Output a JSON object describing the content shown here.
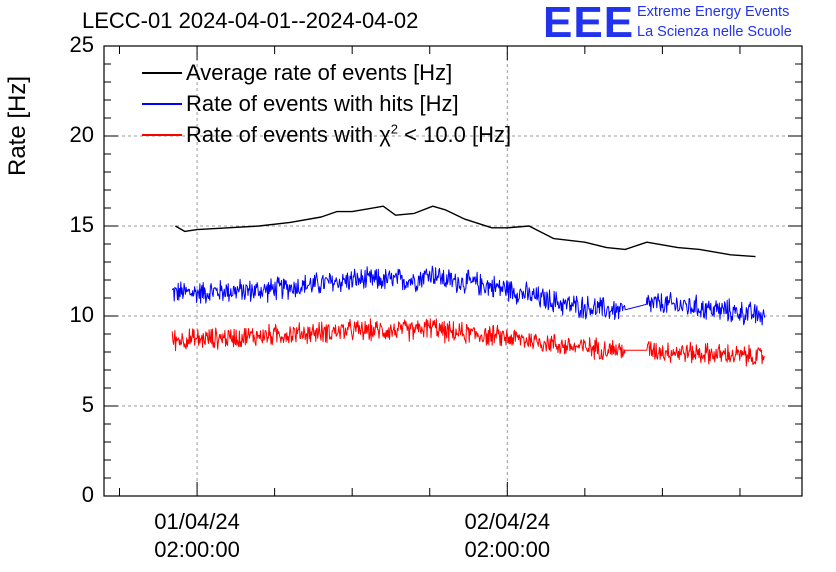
{
  "header": {
    "title": "LECC-01 2024-04-01--2024-04-02",
    "brand_logo": "EEE",
    "brand_line1": "Extreme Energy Events",
    "brand_line2": "La Scienza nelle Scuole"
  },
  "chart_data": {
    "type": "line",
    "title": "LECC-01 2024-04-01--2024-04-02",
    "ylabel": "Rate [Hz]",
    "xlabel": "",
    "ylim": [
      0,
      25
    ],
    "yticks": [
      "0",
      "5",
      "10",
      "15",
      "20",
      "25"
    ],
    "xlim": [
      -0.3,
      1.95
    ],
    "xticks": [
      {
        "x": 0,
        "date": "01/04/24",
        "time": "02:00:00"
      },
      {
        "x": 1,
        "date": "02/04/24",
        "time": "02:00:00"
      }
    ],
    "grid": true,
    "legend_placement": "top-left",
    "series": [
      {
        "name": "Average rate of events [Hz]",
        "color": "#000000",
        "style": "smooth",
        "x": [
          -0.07,
          -0.04,
          0.0,
          0.1,
          0.2,
          0.3,
          0.4,
          0.45,
          0.5,
          0.6,
          0.64,
          0.7,
          0.76,
          0.8,
          0.86,
          0.95,
          1.0,
          1.07,
          1.15,
          1.25,
          1.32,
          1.38,
          1.45,
          1.55,
          1.62,
          1.72,
          1.8
        ],
        "y": [
          15.0,
          14.7,
          14.8,
          14.9,
          15.0,
          15.2,
          15.5,
          15.8,
          15.8,
          16.1,
          15.6,
          15.7,
          16.1,
          15.9,
          15.4,
          14.9,
          14.9,
          15.0,
          14.3,
          14.1,
          13.8,
          13.7,
          14.1,
          13.8,
          13.7,
          13.4,
          13.3
        ]
      },
      {
        "name": "Rate of events with hits [Hz]",
        "color": "#0000ff",
        "style": "noisy",
        "noise_amplitude": 0.55,
        "x": [
          -0.08,
          0.0,
          0.1,
          0.2,
          0.3,
          0.4,
          0.5,
          0.6,
          0.7,
          0.76,
          0.8,
          0.9,
          1.0,
          1.1,
          1.2,
          1.3,
          1.37,
          1.46,
          1.55,
          1.65,
          1.75,
          1.83
        ],
        "y": [
          11.3,
          11.3,
          11.4,
          11.4,
          11.6,
          11.8,
          12.0,
          12.0,
          12.0,
          12.4,
          12.0,
          11.8,
          11.5,
          11.0,
          10.6,
          10.4,
          10.3,
          10.7,
          10.6,
          10.4,
          10.2,
          10.0
        ],
        "gap": [
          1.38,
          1.45
        ]
      },
      {
        "name": "Rate of events with χ² < 10.0 [Hz]",
        "color": "#ff0000",
        "style": "noisy",
        "noise_amplitude": 0.5,
        "x": [
          -0.08,
          0.0,
          0.1,
          0.2,
          0.3,
          0.4,
          0.5,
          0.6,
          0.7,
          0.76,
          0.8,
          0.9,
          1.0,
          1.1,
          1.2,
          1.3,
          1.37,
          1.46,
          1.55,
          1.65,
          1.75,
          1.83
        ],
        "y": [
          8.7,
          8.7,
          8.8,
          8.9,
          9.0,
          9.1,
          9.2,
          9.2,
          9.2,
          9.4,
          9.1,
          9.0,
          8.8,
          8.6,
          8.3,
          8.2,
          8.1,
          8.1,
          8.0,
          7.9,
          7.8,
          7.7
        ],
        "gap": [
          1.38,
          1.45
        ]
      }
    ]
  },
  "legend": {
    "entries": [
      {
        "text": "Average rate of events [Hz]"
      },
      {
        "text": "Rate of events with hits [Hz]"
      },
      {
        "text_prefix": "Rate of events with ",
        "chi": "χ",
        "sup": "2",
        "text_suffix": " < 10.0 [Hz]"
      }
    ]
  }
}
